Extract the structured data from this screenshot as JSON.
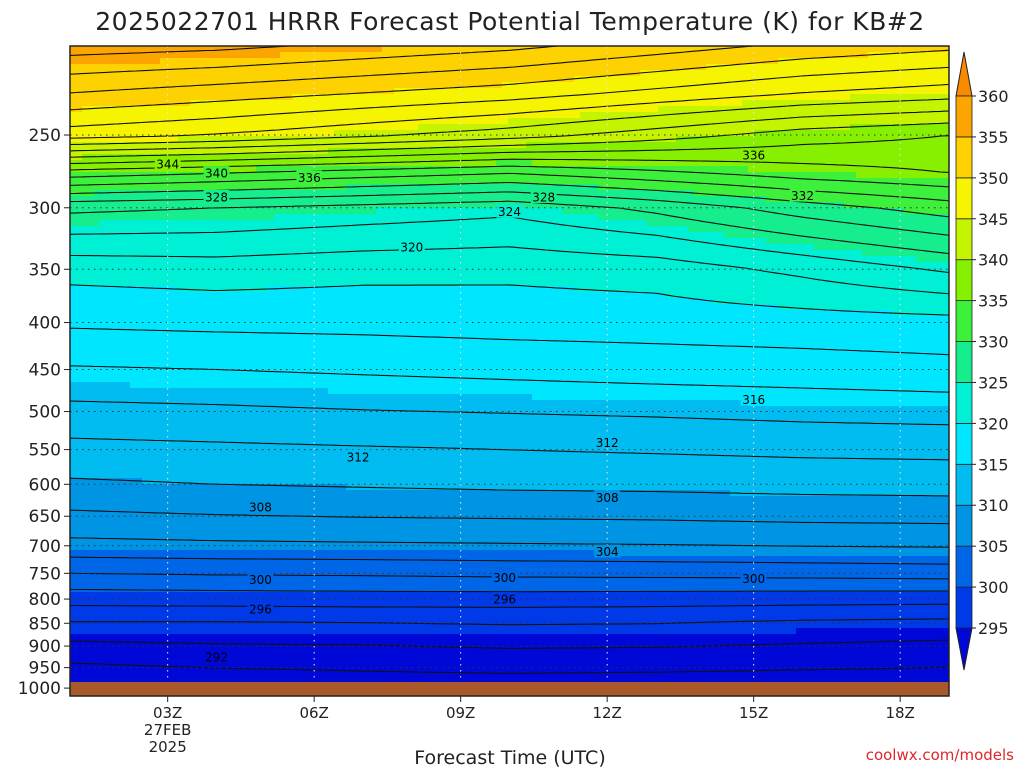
{
  "title": "2025022701 HRRR Forecast Potential Temperature (K) for KB#2",
  "credit": "coolwx.com/models",
  "chart_data": {
    "type": "heatmap",
    "title": "2025022701 HRRR Forecast Potential Temperature (K) for KB#2",
    "xlabel": "Forecast Time (UTC)",
    "ylabel": "",
    "x_range_hours": [
      1,
      19
    ],
    "x_ticks": [
      {
        "hour": 3,
        "label": "03Z",
        "sub": [
          "27FEB",
          "2025"
        ]
      },
      {
        "hour": 6,
        "label": "06Z"
      },
      {
        "hour": 9,
        "label": "09Z"
      },
      {
        "hour": 12,
        "label": "12Z"
      },
      {
        "hour": 15,
        "label": "15Z"
      },
      {
        "hour": 18,
        "label": "18Z"
      }
    ],
    "y_axis": {
      "type": "log-pressure",
      "top": 200,
      "bottom": 1020,
      "ticks": [
        250,
        300,
        350,
        400,
        450,
        500,
        550,
        600,
        650,
        700,
        750,
        800,
        850,
        900,
        950,
        1000
      ]
    },
    "grid": true,
    "colorbar": {
      "levels": [
        295,
        300,
        305,
        310,
        315,
        320,
        325,
        330,
        335,
        340,
        345,
        350,
        355,
        360
      ],
      "colors": [
        "#0008d8",
        "#0039e8",
        "#0066e8",
        "#0094e4",
        "#00bcf0",
        "#00e6ff",
        "#00f0d6",
        "#16ee8e",
        "#3cf03c",
        "#86f000",
        "#c4f400",
        "#f6f400",
        "#fed100",
        "#fca400",
        "#f88a00"
      ],
      "triangle_low": true,
      "triangle_high": true
    },
    "contour_interval_k": 2,
    "profile_hours": [
      1,
      4,
      7,
      10,
      13,
      16,
      19
    ],
    "theta_profiles": [
      {
        "pressure": 1000,
        "theta": [
          290.5,
          290.8,
          291.0,
          291.0,
          290.6,
          290.4,
          290.2
        ]
      },
      {
        "pressure": 950,
        "theta": [
          291.6,
          292.0,
          292.2,
          292.4,
          292.4,
          292.2,
          292.0
        ]
      },
      {
        "pressure": 900,
        "theta": [
          293.5,
          293.8,
          293.9,
          294.2,
          294.1,
          293.8,
          293.5
        ]
      },
      {
        "pressure": 850,
        "theta": [
          295.8,
          295.8,
          295.9,
          296.1,
          296.0,
          295.6,
          295.4
        ]
      },
      {
        "pressure": 800,
        "theta": [
          298.8,
          298.9,
          299.0,
          299.0,
          298.9,
          298.8,
          298.7
        ]
      },
      {
        "pressure": 750,
        "theta": [
          302.0,
          302.2,
          302.3,
          302.5,
          302.6,
          302.7,
          302.9
        ]
      },
      {
        "pressure": 700,
        "theta": [
          305.4,
          305.6,
          305.7,
          305.8,
          305.9,
          306.1,
          306.2
        ]
      },
      {
        "pressure": 650,
        "theta": [
          307.6,
          307.9,
          308.1,
          308.2,
          308.3,
          308.5,
          308.6
        ]
      },
      {
        "pressure": 600,
        "theta": [
          309.7,
          310.0,
          310.2,
          310.4,
          310.5,
          310.7,
          310.8
        ]
      },
      {
        "pressure": 550,
        "theta": [
          311.4,
          311.6,
          311.8,
          312.0,
          312.2,
          312.4,
          312.5
        ]
      },
      {
        "pressure": 500,
        "theta": [
          313.4,
          313.6,
          313.9,
          314.1,
          314.3,
          314.6,
          314.8
        ]
      },
      {
        "pressure": 450,
        "theta": [
          315.8,
          316.0,
          316.3,
          316.6,
          316.9,
          317.1,
          317.4
        ]
      },
      {
        "pressure": 400,
        "theta": [
          318.3,
          318.5,
          318.6,
          318.8,
          318.9,
          319.1,
          319.3
        ]
      },
      {
        "pressure": 350,
        "theta": [
          320.7,
          321.0,
          320.6,
          320.5,
          320.9,
          322.5,
          324.3
        ]
      },
      {
        "pressure": 300,
        "theta": [
          326.5,
          326.0,
          325.3,
          324.6,
          326.5,
          329.0,
          331.0
        ]
      },
      {
        "pressure": 275,
        "theta": [
          335.0,
          334.0,
          333.0,
          332.0,
          333.5,
          335.0,
          336.0
        ]
      },
      {
        "pressure": 250,
        "theta": [
          347.0,
          346.0,
          344.5,
          343.0,
          341.0,
          339.0,
          338.0
        ]
      },
      {
        "pressure": 225,
        "theta": [
          352.0,
          351.0,
          350.0,
          349.0,
          347.5,
          346.0,
          345.0
        ]
      },
      {
        "pressure": 200,
        "theta": [
          357.0,
          356.5,
          355.5,
          354.5,
          353.0,
          351.5,
          350.5
        ]
      }
    ],
    "contour_labels": [
      {
        "text": "344",
        "hour": 3.0,
        "pressure": 269
      },
      {
        "text": "340",
        "hour": 4.0,
        "pressure": 275
      },
      {
        "text": "336",
        "hour": 5.9,
        "pressure": 278
      },
      {
        "text": "328",
        "hour": 4.0,
        "pressure": 292
      },
      {
        "text": "328",
        "hour": 10.7,
        "pressure": 292
      },
      {
        "text": "336",
        "hour": 15.0,
        "pressure": 263
      },
      {
        "text": "332",
        "hour": 16.0,
        "pressure": 291
      },
      {
        "text": "324",
        "hour": 10.0,
        "pressure": 303
      },
      {
        "text": "320",
        "hour": 8.0,
        "pressure": 331
      },
      {
        "text": "316",
        "hour": 15.0,
        "pressure": 485
      },
      {
        "text": "312",
        "hour": 12.0,
        "pressure": 540
      },
      {
        "text": "312",
        "hour": 6.9,
        "pressure": 560
      },
      {
        "text": "308",
        "hour": 4.9,
        "pressure": 635
      },
      {
        "text": "308",
        "hour": 12.0,
        "pressure": 620
      },
      {
        "text": "304",
        "hour": 12.0,
        "pressure": 710
      },
      {
        "text": "300",
        "hour": 4.9,
        "pressure": 762
      },
      {
        "text": "300",
        "hour": 9.9,
        "pressure": 758
      },
      {
        "text": "300",
        "hour": 15.0,
        "pressure": 760
      },
      {
        "text": "296",
        "hour": 4.9,
        "pressure": 820
      },
      {
        "text": "296",
        "hour": 9.9,
        "pressure": 800
      },
      {
        "text": "292",
        "hour": 4.0,
        "pressure": 925
      }
    ]
  }
}
